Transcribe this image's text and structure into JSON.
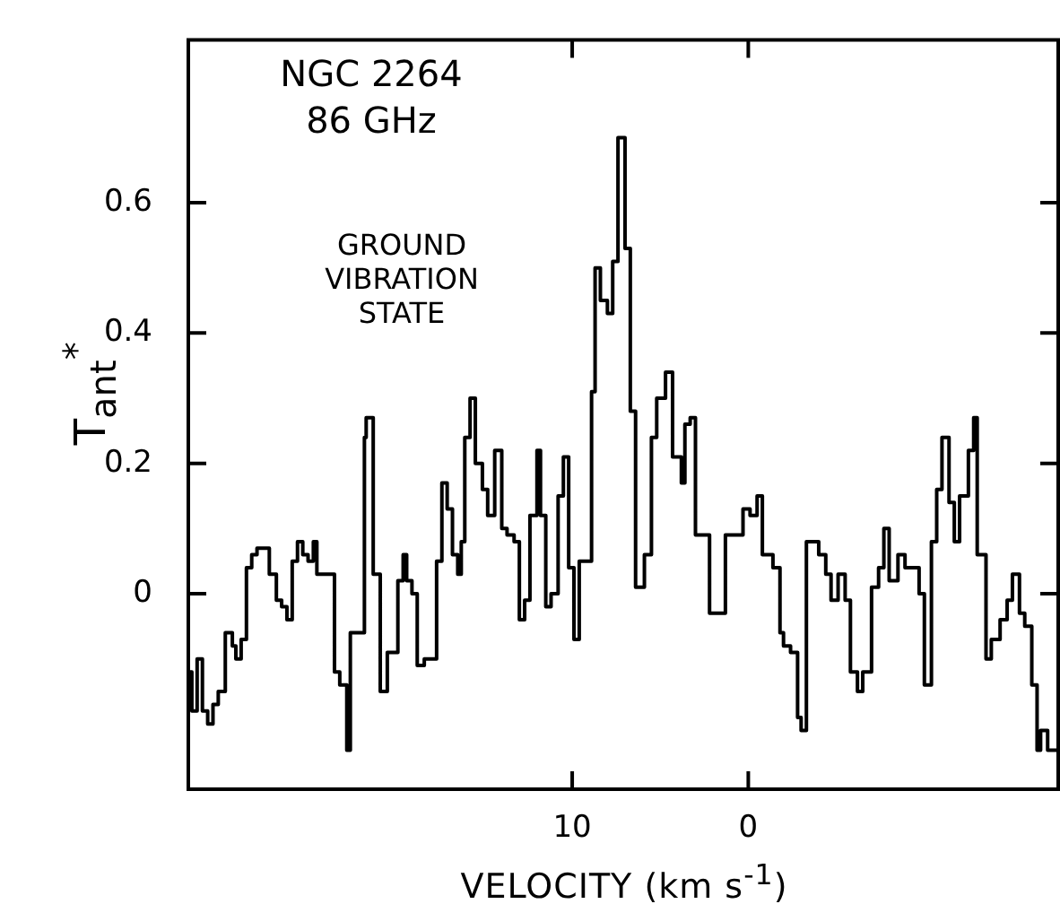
{
  "chart_data": {
    "type": "step",
    "xlabel": "VELOCITY (km s$^{-1}$)",
    "ylabel": "T$_{ant}$$^{*}$",
    "annotations": [
      "NGC 2264",
      "86 GHz",
      "GROUND VIBRATION STATE"
    ],
    "xlim": [
      31.8,
      -17.6
    ],
    "xticks": [
      10,
      0
    ],
    "ylim": [
      -0.3,
      0.85
    ],
    "yticks": [
      0,
      0.2,
      0.4,
      0.6
    ],
    "grid": false,
    "legend": false,
    "series": [
      {
        "color": "#000000",
        "x": [
          31.8,
          31.6,
          31.3,
          31.0,
          30.7,
          30.4,
          30.1,
          29.7,
          29.3,
          29.1,
          28.8,
          28.5,
          28.2,
          27.9,
          27.6,
          27.2,
          26.8,
          26.5,
          26.2,
          25.9,
          25.6,
          25.3,
          25.0,
          24.7,
          24.5,
          23.5,
          23.2,
          22.8,
          22.6,
          21.8,
          21.7,
          21.3,
          20.9,
          20.5,
          19.9,
          19.6,
          19.4,
          19.1,
          18.8,
          18.4,
          17.7,
          17.4,
          17.1,
          16.8,
          16.5,
          16.3,
          16.1,
          15.8,
          15.5,
          15.1,
          14.8,
          14.4,
          14.0,
          13.7,
          13.3,
          13.0,
          12.7,
          12.4,
          12.0,
          11.8,
          11.5,
          11.2,
          10.8,
          10.5,
          10.2,
          9.9,
          9.6,
          8.9,
          8.7,
          8.4,
          8.0,
          7.7,
          7.4,
          7.0,
          6.7,
          6.4,
          5.9,
          5.5,
          5.2,
          4.7,
          4.3,
          3.8,
          3.6,
          3.3,
          3.0,
          2.2,
          1.3,
          0.3,
          -0.1,
          -0.5,
          -0.8,
          -1.4,
          -1.8,
          -2.0,
          -2.4,
          -2.8,
          -3.0,
          -3.3,
          -4.0,
          -4.4,
          -4.7,
          -5.1,
          -5.5,
          -5.8,
          -6.2,
          -6.5,
          -7.0,
          -7.4,
          -7.7,
          -8.0,
          -8.5,
          -8.9,
          -9.7,
          -10.0,
          -10.4,
          -10.7,
          -11.0,
          -11.4,
          -11.7,
          -12.0,
          -12.5,
          -12.8,
          -13.0,
          -13.5,
          -13.8,
          -14.3,
          -14.7,
          -15.0,
          -15.4,
          -15.7,
          -16.1,
          -16.4,
          -16.6,
          -17.0,
          -17.4,
          -17.6
        ],
        "values": [
          -0.08,
          -0.12,
          -0.18,
          -0.1,
          -0.18,
          -0.2,
          -0.17,
          -0.15,
          -0.06,
          -0.08,
          -0.1,
          -0.07,
          0.04,
          0.06,
          0.07,
          0.07,
          0.03,
          -0.01,
          -0.02,
          -0.04,
          0.05,
          0.08,
          0.06,
          0.05,
          0.08,
          0.03,
          -0.12,
          -0.14,
          -0.24,
          -0.06,
          0.24,
          0.27,
          0.03,
          -0.15,
          -0.09,
          0.02,
          0.06,
          0.02,
          0.0,
          -0.11,
          -0.1,
          0.05,
          0.17,
          0.13,
          0.06,
          0.03,
          0.08,
          0.24,
          0.3,
          0.2,
          0.16,
          0.12,
          0.22,
          0.1,
          0.09,
          0.08,
          -0.04,
          -0.01,
          0.12,
          0.22,
          0.12,
          -0.02,
          0.0,
          0.15,
          0.21,
          0.04,
          -0.07,
          0.05,
          0.31,
          0.5,
          0.45,
          0.43,
          0.51,
          0.7,
          0.53,
          0.28,
          0.01,
          0.06,
          0.24,
          0.3,
          0.34,
          0.21,
          0.17,
          0.26,
          0.27,
          0.09,
          -0.03,
          0.09,
          0.13,
          0.12,
          0.15,
          0.06,
          0.04,
          -0.06,
          -0.08,
          -0.09,
          -0.19,
          -0.21,
          0.08,
          0.06,
          0.03,
          -0.01,
          0.03,
          -0.01,
          -0.12,
          -0.15,
          -0.12,
          0.01,
          0.04,
          0.1,
          0.02,
          0.06,
          0.04,
          0.0,
          -0.14,
          0.08,
          0.16,
          0.24,
          0.14,
          0.08,
          0.15,
          0.22,
          0.27,
          0.06,
          -0.1,
          -0.07,
          -0.04,
          -0.01,
          0.03,
          -0.03,
          -0.05,
          -0.14,
          -0.24,
          -0.21,
          -0.24,
          -0.24
        ]
      }
    ]
  }
}
